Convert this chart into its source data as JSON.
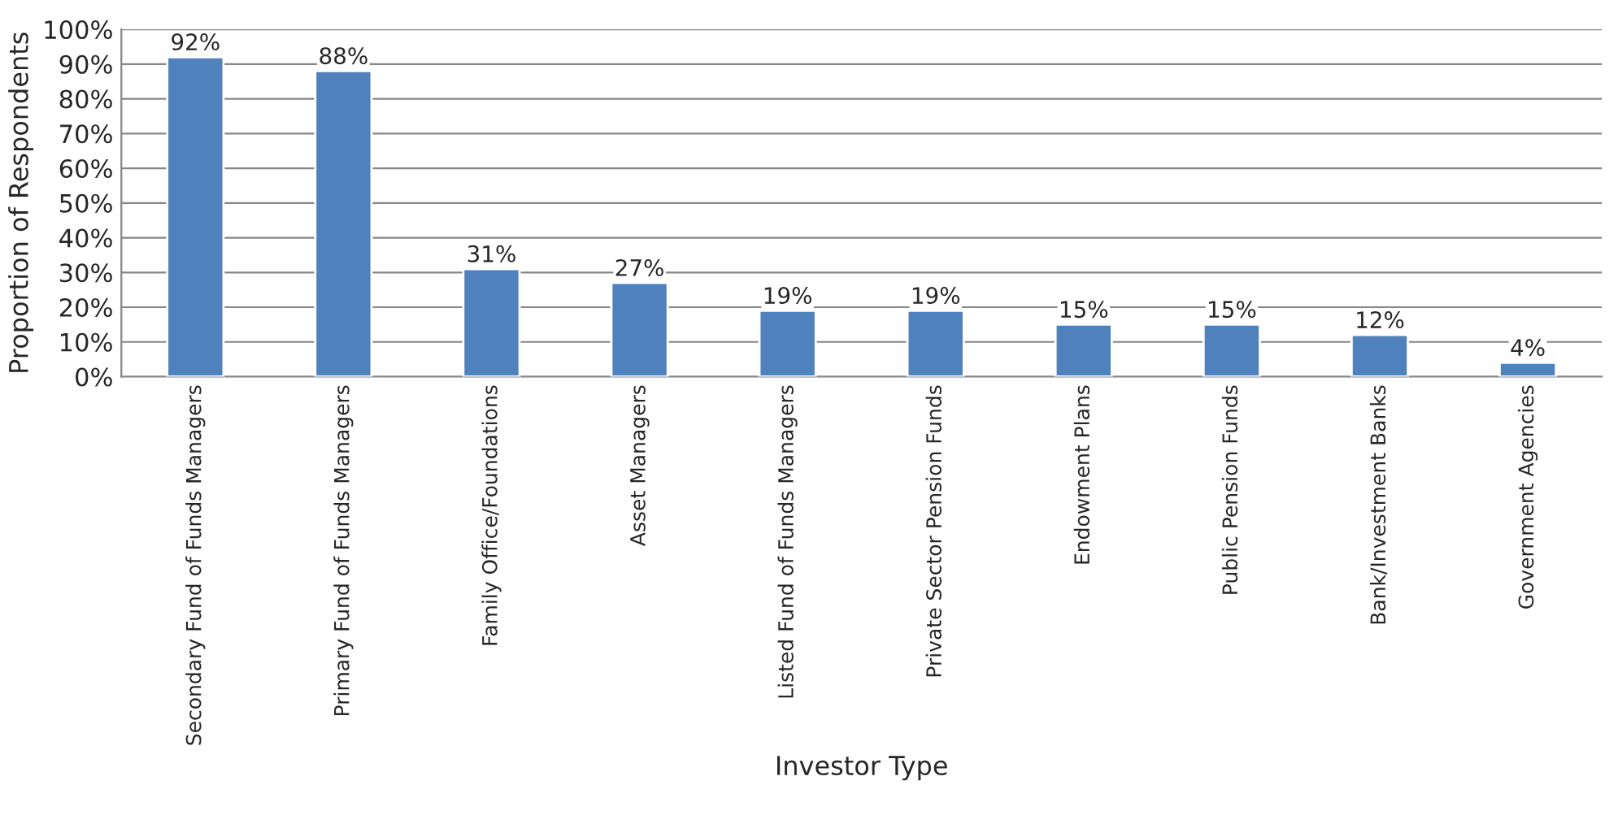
{
  "chart_data": {
    "type": "bar",
    "xlabel": "Investor Type",
    "ylabel": "Proportion of Respondents",
    "categories": [
      "Secondary Fund of Funds Managers",
      "Primary Fund of Funds Managers",
      "Family Office/Foundations",
      "Asset Managers",
      "Listed Fund of Funds Managers",
      "Private Sector Pension Funds",
      "Endowment Plans",
      "Public Pension Funds",
      "Bank/Investment Banks",
      "Government Agencies"
    ],
    "values": [
      92,
      88,
      31,
      27,
      19,
      19,
      15,
      15,
      12,
      4
    ],
    "value_labels": [
      "92%",
      "88%",
      "31%",
      "27%",
      "19%",
      "19%",
      "15%",
      "15%",
      "12%",
      "4%"
    ],
    "color": "#4f81bd",
    "ylim": [
      0,
      100
    ],
    "yticks": [
      {
        "value": 0,
        "label": "0%"
      },
      {
        "value": 10,
        "label": "10%"
      },
      {
        "value": 20,
        "label": "20%"
      },
      {
        "value": 30,
        "label": "30%"
      },
      {
        "value": 40,
        "label": "40%"
      },
      {
        "value": 50,
        "label": "50%"
      },
      {
        "value": 60,
        "label": "60%"
      },
      {
        "value": 70,
        "label": "70%"
      },
      {
        "value": 80,
        "label": "80%"
      },
      {
        "value": 90,
        "label": "90%"
      },
      {
        "value": 100,
        "label": "100%"
      }
    ],
    "grid": "y",
    "legend": false
  }
}
